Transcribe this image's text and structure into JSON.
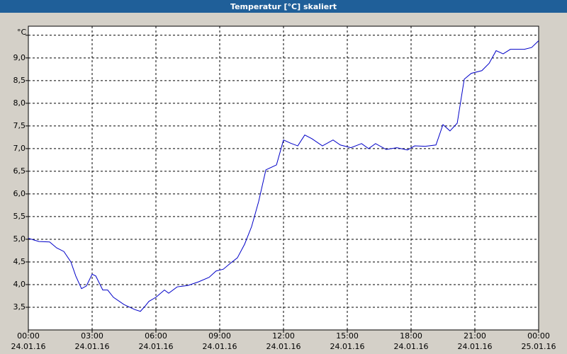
{
  "chart_data": {
    "type": "line",
    "title": "Temperatur [°C] skaliert",
    "y_unit": "°C",
    "xlim": [
      0,
      24
    ],
    "ylim": [
      3,
      9.7
    ],
    "grid": true,
    "xticks": [
      {
        "value": 0,
        "label": "00:00",
        "date": "24.01.16"
      },
      {
        "value": 3,
        "label": "03:00",
        "date": "24.01.16"
      },
      {
        "value": 6,
        "label": "06:00",
        "date": "24.01.16"
      },
      {
        "value": 9,
        "label": "09:00",
        "date": "24.01.16"
      },
      {
        "value": 12,
        "label": "12:00",
        "date": "24.01.16"
      },
      {
        "value": 15,
        "label": "15:00",
        "date": "24.01.16"
      },
      {
        "value": 18,
        "label": "18:00",
        "date": "24.01.16"
      },
      {
        "value": 21,
        "label": "21:00",
        "date": "24.01.16"
      },
      {
        "value": 24,
        "label": "00:00",
        "date": "25.01.16"
      }
    ],
    "yticks": [
      {
        "value": 3.5,
        "label": "3,5"
      },
      {
        "value": 4,
        "label": "4,0"
      },
      {
        "value": 4.5,
        "label": "4,5"
      },
      {
        "value": 5,
        "label": "5,0"
      },
      {
        "value": 5.5,
        "label": "5,5"
      },
      {
        "value": 6,
        "label": "6,0"
      },
      {
        "value": 6.5,
        "label": "6,5"
      },
      {
        "value": 7,
        "label": "7,0"
      },
      {
        "value": 7.5,
        "label": "7,5"
      },
      {
        "value": 8,
        "label": "8,0"
      },
      {
        "value": 8.5,
        "label": "8,5"
      },
      {
        "value": 9,
        "label": "9,0"
      },
      {
        "value": 9.5,
        "label": null
      }
    ],
    "x": [
      0,
      0.5,
      1,
      1.33,
      1.67,
      2,
      2.23,
      2.5,
      2.73,
      3,
      3.17,
      3.5,
      3.73,
      4,
      4.5,
      5,
      5.27,
      5.5,
      5.67,
      6,
      6.4,
      6.6,
      7,
      7.5,
      8,
      8.5,
      8.83,
      9.17,
      9.5,
      9.83,
      10.17,
      10.5,
      10.83,
      11.17,
      11.67,
      12,
      12.33,
      12.67,
      13,
      13.33,
      13.83,
      14.33,
      14.67,
      15.17,
      15.67,
      16,
      16.33,
      16.83,
      17.33,
      17.83,
      18.17,
      18.67,
      19.17,
      19.5,
      19.83,
      20.17,
      20.5,
      20.83,
      21.33,
      21.67,
      22,
      22.33,
      22.67,
      23.33,
      23.67,
      24
    ],
    "series": [
      {
        "name": "Temperatur",
        "color": "#0000c8",
        "values": [
          5.02,
          4.95,
          4.94,
          4.81,
          4.73,
          4.5,
          4.19,
          3.91,
          3.97,
          4.23,
          4.19,
          3.88,
          3.88,
          3.72,
          3.56,
          3.45,
          3.41,
          3.53,
          3.63,
          3.72,
          3.88,
          3.81,
          3.95,
          3.98,
          4.06,
          4.16,
          4.3,
          4.34,
          4.47,
          4.59,
          4.89,
          5.28,
          5.83,
          6.53,
          6.64,
          7.19,
          7.12,
          7.06,
          7.3,
          7.22,
          7.06,
          7.19,
          7.08,
          7.02,
          7.11,
          7.0,
          7.11,
          6.98,
          7.02,
          6.97,
          7.06,
          7.05,
          7.08,
          7.53,
          7.39,
          7.56,
          8.53,
          8.66,
          8.72,
          8.88,
          9.16,
          9.09,
          9.19,
          9.19,
          9.23,
          9.38
        ]
      }
    ]
  }
}
